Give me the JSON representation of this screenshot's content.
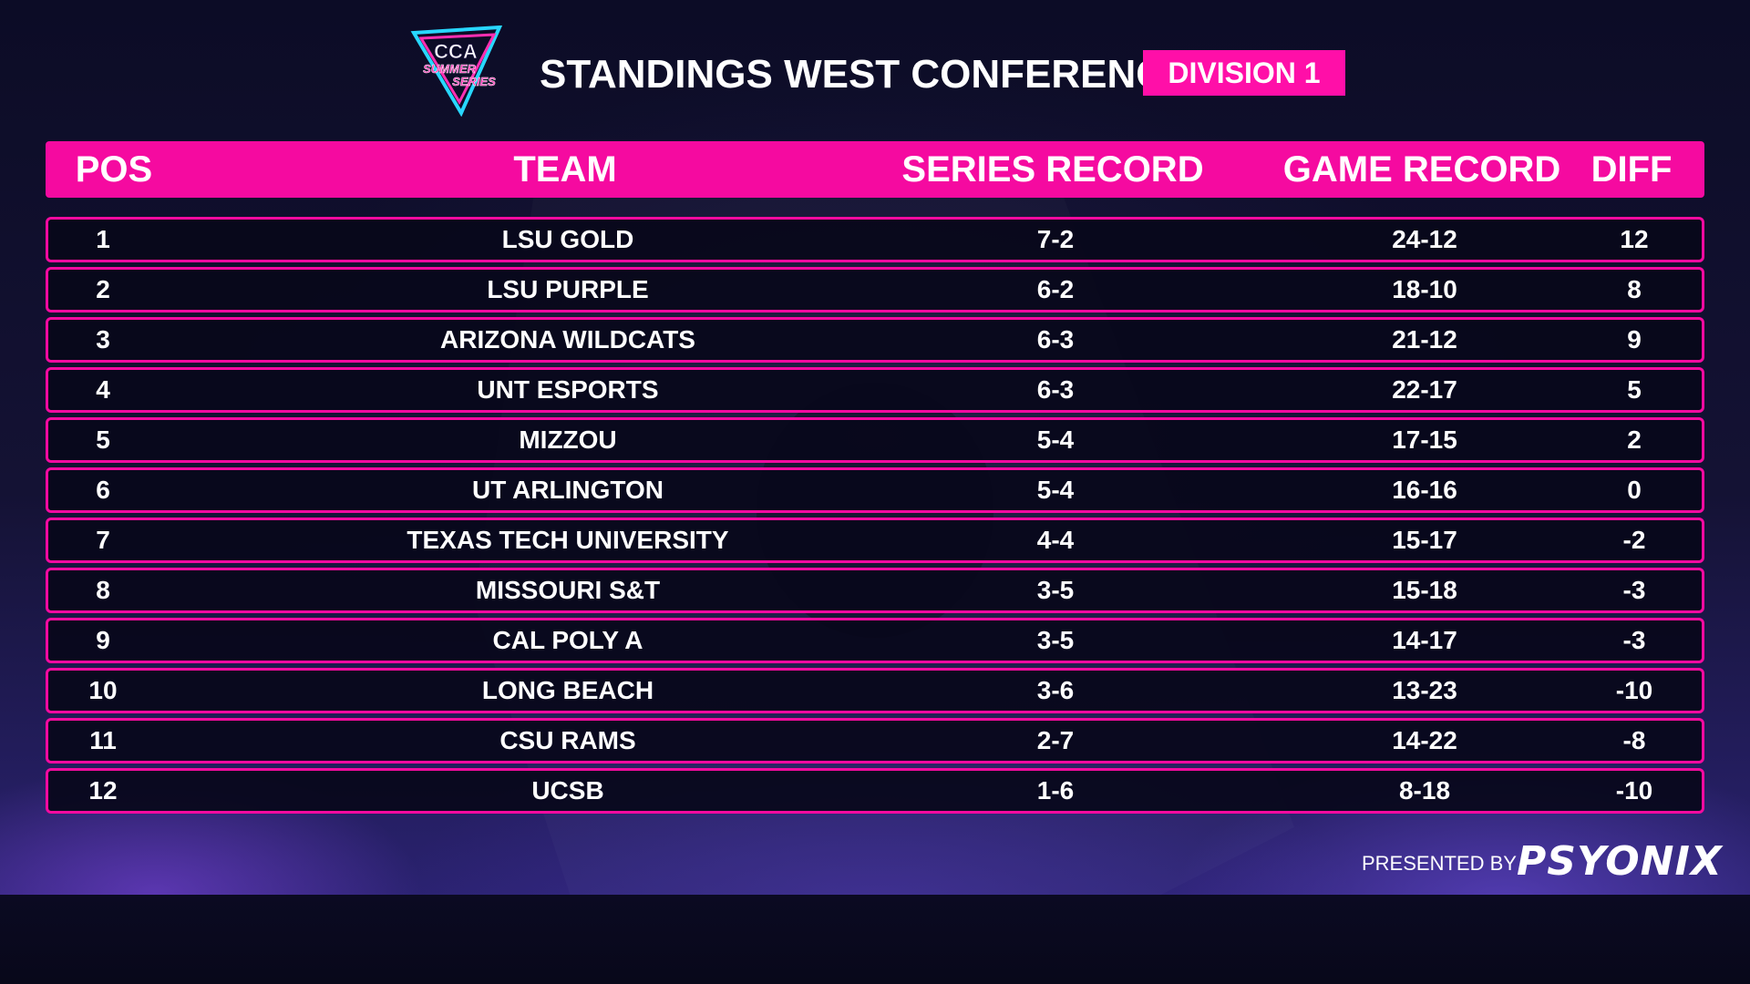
{
  "header": {
    "logo": {
      "line1": "CCA",
      "line2": "SUMMER",
      "line3": "SERIES"
    },
    "title": "STANDINGS WEST CONFERENCE",
    "division": "DIVISION 1"
  },
  "table": {
    "columns": [
      "POS",
      "TEAM",
      "SERIES RECORD",
      "GAME RECORD",
      "DIFF"
    ],
    "rows": [
      {
        "pos": "1",
        "team": "LSU GOLD",
        "series": "7-2",
        "game": "24-12",
        "diff": "12"
      },
      {
        "pos": "2",
        "team": "LSU PURPLE",
        "series": "6-2",
        "game": "18-10",
        "diff": "8"
      },
      {
        "pos": "3",
        "team": "ARIZONA WILDCATS",
        "series": "6-3",
        "game": "21-12",
        "diff": "9"
      },
      {
        "pos": "4",
        "team": "UNT ESPORTS",
        "series": "6-3",
        "game": "22-17",
        "diff": "5"
      },
      {
        "pos": "5",
        "team": "MIZZOU",
        "series": "5-4",
        "game": "17-15",
        "diff": "2"
      },
      {
        "pos": "6",
        "team": "UT ARLINGTON",
        "series": "5-4",
        "game": "16-16",
        "diff": "0"
      },
      {
        "pos": "7",
        "team": "TEXAS TECH UNIVERSITY",
        "series": "4-4",
        "game": "15-17",
        "diff": "-2"
      },
      {
        "pos": "8",
        "team": "MISSOURI S&T",
        "series": "3-5",
        "game": "15-18",
        "diff": "-3"
      },
      {
        "pos": "9",
        "team": "CAL POLY A",
        "series": "3-5",
        "game": "14-17",
        "diff": "-3"
      },
      {
        "pos": "10",
        "team": "LONG BEACH",
        "series": "3-6",
        "game": "13-23",
        "diff": "-10"
      },
      {
        "pos": "11",
        "team": "CSU RAMS",
        "series": "2-7",
        "game": "14-22",
        "diff": "-8"
      },
      {
        "pos": "12",
        "team": "UCSB",
        "series": "1-6",
        "game": "8-18",
        "diff": "-10"
      }
    ]
  },
  "footer": {
    "presented_by": "PRESENTED BY",
    "sponsor": "PSYONIX"
  },
  "colors": {
    "accent": "#f50aa0",
    "background": "#0c0c26",
    "text": "#ffffff"
  }
}
